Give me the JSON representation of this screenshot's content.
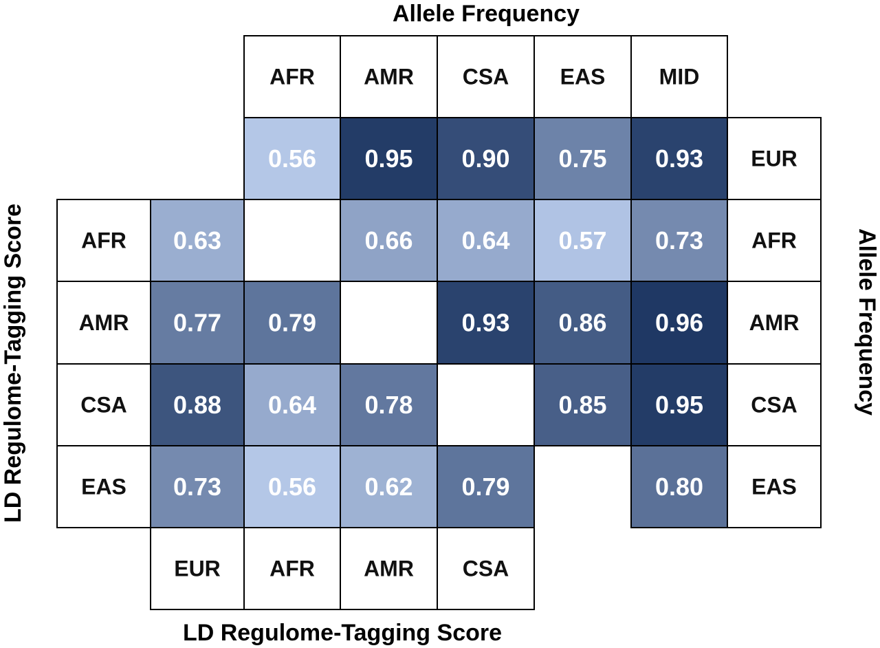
{
  "chart_data": {
    "type": "heatmap",
    "title_top": "Allele Frequency",
    "title_right": "Allele Frequency",
    "title_left": "LD Regulome-Tagging Score",
    "title_bottom": "LD Regulome-Tagging Score",
    "top_headers": [
      "AFR",
      "AMR",
      "CSA",
      "EAS",
      "MID"
    ],
    "right_headers": [
      "EUR",
      "AFR",
      "AMR",
      "CSA",
      "EAS"
    ],
    "left_headers": [
      "AFR",
      "AMR",
      "CSA",
      "EAS"
    ],
    "bottom_headers": [
      "EUR",
      "AFR",
      "AMR",
      "CSA"
    ],
    "upper_triangle": {
      "description_rows": "rows correspond to right_headers, columns to top_headers",
      "values": [
        [
          0.56,
          0.95,
          0.9,
          0.75,
          0.93
        ],
        [
          null,
          0.66,
          0.64,
          0.57,
          0.73
        ],
        [
          null,
          null,
          0.93,
          0.86,
          0.96
        ],
        [
          null,
          null,
          null,
          0.85,
          0.95
        ],
        [
          null,
          null,
          null,
          null,
          0.8
        ]
      ]
    },
    "lower_triangle": {
      "description_rows": "rows correspond to left_headers, columns to bottom_headers",
      "values": [
        [
          0.63,
          null,
          null,
          null
        ],
        [
          0.77,
          0.79,
          null,
          null
        ],
        [
          0.88,
          0.64,
          0.78,
          null
        ],
        [
          0.73,
          0.56,
          0.62,
          0.79
        ]
      ]
    },
    "color_scale": {
      "low_value": 0.56,
      "high_value": 0.96,
      "low_color": "#b4c7e7",
      "high_color": "#1f3864"
    }
  }
}
